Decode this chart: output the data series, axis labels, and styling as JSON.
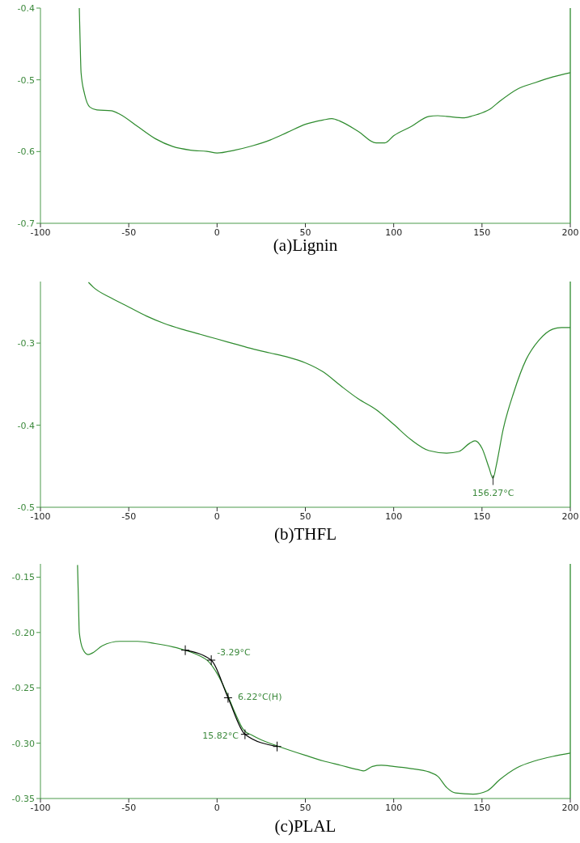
{
  "chart_data": [
    {
      "type": "line",
      "title": "(a)Lignin",
      "xlim": [
        -100,
        200
      ],
      "ylim": [
        -0.7,
        -0.4
      ],
      "xticks": [
        -100,
        -50,
        0,
        50,
        100,
        150,
        200
      ],
      "yticks": [
        -0.7,
        -0.6,
        -0.5,
        -0.4
      ],
      "grid": false,
      "series": [
        {
          "color": "#2e8b2e",
          "x": [
            -78,
            -77.5,
            -77,
            -75,
            -72,
            -68,
            -60,
            -55,
            -45,
            -35,
            -25,
            -15,
            -5,
            0,
            10,
            20,
            30,
            40,
            50,
            60,
            65,
            70,
            80,
            90,
            95,
            100,
            110,
            120,
            125,
            130,
            140,
            145,
            150,
            155,
            160,
            170,
            180,
            190,
            200
          ],
          "values": [
            -0.4,
            -0.45,
            -0.49,
            -0.52,
            -0.538,
            -0.542,
            -0.543,
            -0.548,
            -0.565,
            -0.582,
            -0.593,
            -0.598,
            -0.6,
            -0.602,
            -0.598,
            -0.592,
            -0.584,
            -0.573,
            -0.562,
            -0.556,
            -0.554,
            -0.558,
            -0.572,
            -0.588,
            -0.588,
            -0.578,
            -0.565,
            -0.551,
            -0.55,
            -0.551,
            -0.553,
            -0.55,
            -0.546,
            -0.54,
            -0.53,
            -0.513,
            -0.504,
            -0.496,
            -0.49
          ]
        }
      ]
    },
    {
      "type": "line",
      "title": "(b)THFL",
      "xlim": [
        -100,
        200
      ],
      "ylim": [
        -0.5,
        -0.225
      ],
      "xticks": [
        -100,
        -50,
        0,
        50,
        100,
        150,
        200
      ],
      "yticks": [
        -0.5,
        -0.4,
        -0.3
      ],
      "grid": false,
      "series": [
        {
          "color": "#2e8b2e",
          "x": [
            -72.8,
            -70,
            -60,
            -50,
            -40,
            -30,
            -20,
            -10,
            0,
            10,
            20,
            30,
            40,
            50,
            60,
            70,
            80,
            90,
            100,
            110,
            120,
            130,
            137,
            143,
            146,
            150,
            154,
            156.27,
            158,
            162,
            168,
            175,
            182,
            190,
            195,
            200
          ],
          "values": [
            -0.226,
            -0.232,
            -0.245,
            -0.256,
            -0.267,
            -0.276,
            -0.283,
            -0.289,
            -0.295,
            -0.301,
            -0.307,
            -0.312,
            -0.317,
            -0.324,
            -0.335,
            -0.352,
            -0.368,
            -0.381,
            -0.399,
            -0.418,
            -0.431,
            -0.434,
            -0.432,
            -0.422,
            -0.419,
            -0.428,
            -0.452,
            -0.465,
            -0.45,
            -0.405,
            -0.36,
            -0.32,
            -0.297,
            -0.283,
            -0.281,
            -0.281
          ]
        }
      ],
      "annotations": [
        {
          "text": "156.27°C",
          "x": 156.27,
          "y": -0.465
        }
      ]
    },
    {
      "type": "line",
      "title": "(c)PLAL",
      "xlim": [
        -100,
        200
      ],
      "ylim": [
        -0.35,
        -0.138
      ],
      "xticks": [
        -100,
        -50,
        0,
        50,
        100,
        150,
        200
      ],
      "yticks": [
        {
          "value": -0.35,
          "label": "-0.35"
        },
        {
          "value": -0.3,
          "label": "-0.30"
        },
        {
          "value": -0.25,
          "label": "-0.25"
        },
        {
          "value": -0.2,
          "label": "-0.20"
        },
        {
          "value": -0.15,
          "label": "-0.15"
        }
      ],
      "grid": false,
      "series": [
        {
          "color": "#2e8b2e",
          "x": [
            -79,
            -78.5,
            -78,
            -76,
            -73,
            -70,
            -65,
            -55,
            -45,
            -35,
            -25,
            -18,
            -10,
            -5,
            0,
            5,
            10,
            15,
            20,
            25,
            35,
            50,
            60,
            70,
            80,
            83,
            88,
            93,
            100,
            110,
            120,
            125,
            130,
            135,
            145,
            153,
            160,
            170,
            180,
            190,
            200
          ],
          "values": [
            -0.139,
            -0.17,
            -0.2,
            -0.215,
            -0.22,
            -0.218,
            -0.212,
            -0.208,
            -0.208,
            -0.21,
            -0.213,
            -0.216,
            -0.221,
            -0.226,
            -0.237,
            -0.253,
            -0.272,
            -0.288,
            -0.293,
            -0.297,
            -0.303,
            -0.311,
            -0.316,
            -0.32,
            -0.324,
            -0.325,
            -0.321,
            -0.32,
            -0.321,
            -0.323,
            -0.326,
            -0.33,
            -0.34,
            -0.345,
            -0.346,
            -0.343,
            -0.333,
            -0.322,
            -0.316,
            -0.312,
            -0.309
          ]
        },
        {
          "type": "line",
          "color": "#000000",
          "marker": "cross",
          "x": [
            -18,
            -3.29,
            6.22,
            15.82,
            34
          ],
          "values": [
            -0.216,
            -0.225,
            -0.259,
            -0.292,
            -0.303
          ]
        }
      ],
      "annotations": [
        {
          "text": "-3.29°C",
          "x": -3.29,
          "y": -0.225
        },
        {
          "text": "6.22°C(H)",
          "x": 6.22,
          "y": -0.259
        },
        {
          "text": "15.82°C",
          "x": 15.82,
          "y": -0.292
        }
      ]
    }
  ]
}
